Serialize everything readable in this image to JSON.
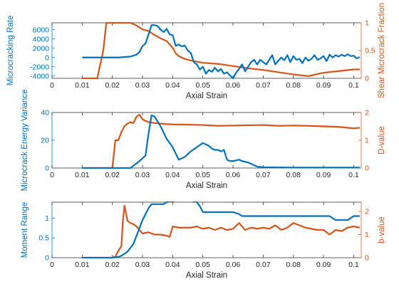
{
  "colors": {
    "left": "#0072BD",
    "right": "#D95319",
    "axis": "#262626"
  },
  "chart_data": [
    {
      "type": "line",
      "xlabel": "Axial Strain",
      "ylabel_left": "Microcracking Rate",
      "ylabel_right": "Shear Microcrack Fraction",
      "xlim": [
        0,
        0.1025
      ],
      "ylim_left": [
        -4500,
        7500
      ],
      "ylim_right": [
        0,
        1
      ],
      "xticks": [
        0,
        0.01,
        0.02,
        0.03,
        0.04,
        0.05,
        0.06,
        0.07,
        0.08,
        0.09,
        0.1
      ],
      "xtick_labels": [
        "0",
        "0.01",
        "0.02",
        "0.03",
        "0.04",
        "0.05",
        "0.06",
        "0.07",
        "0.08",
        "0.09",
        "0.1"
      ],
      "yticks_left": [
        -4000,
        -2000,
        0,
        2000,
        4000,
        6000
      ],
      "ytick_labels_left": [
        "-4000",
        "-2000",
        "0",
        "2000",
        "4000",
        "6000"
      ],
      "yticks_right": [
        0,
        0.5,
        1
      ],
      "ytick_labels_right": [
        "0",
        "0.5",
        "1"
      ],
      "series": [
        {
          "axis": "left",
          "x": [
            0.01,
            0.015,
            0.02,
            0.022,
            0.024,
            0.026,
            0.028,
            0.029,
            0.03,
            0.031,
            0.032,
            0.033,
            0.034,
            0.035,
            0.036,
            0.037,
            0.038,
            0.039,
            0.04,
            0.041,
            0.042,
            0.043,
            0.044,
            0.045,
            0.046,
            0.047,
            0.048,
            0.049,
            0.05,
            0.051,
            0.052,
            0.053,
            0.054,
            0.055,
            0.056,
            0.057,
            0.058,
            0.059,
            0.06,
            0.061,
            0.062,
            0.063,
            0.064,
            0.065,
            0.066,
            0.067,
            0.068,
            0.069,
            0.07,
            0.071,
            0.072,
            0.073,
            0.074,
            0.075,
            0.076,
            0.077,
            0.078,
            0.079,
            0.08,
            0.081,
            0.082,
            0.083,
            0.084,
            0.085,
            0.086,
            0.087,
            0.088,
            0.089,
            0.09,
            0.091,
            0.092,
            0.093,
            0.094,
            0.095,
            0.096,
            0.097,
            0.098,
            0.099,
            0.1,
            0.101,
            0.102
          ],
          "y": [
            0,
            0,
            0,
            0,
            100,
            200,
            600,
            1200,
            2500,
            3000,
            5000,
            7000,
            7000,
            6800,
            6000,
            5500,
            6200,
            5000,
            4800,
            2500,
            2800,
            2400,
            2600,
            1500,
            1000,
            -1000,
            -1500,
            -2600,
            -2000,
            -3500,
            -2700,
            -3100,
            -2200,
            -3000,
            -2500,
            -3500,
            -3200,
            -3900,
            -4500,
            -3300,
            -2500,
            -1500,
            -3000,
            -2000,
            -1000,
            -500,
            -1500,
            -500,
            -1000,
            -1500,
            -500,
            500,
            -1500,
            -700,
            0,
            -600,
            500,
            -1000,
            300,
            -500,
            -300,
            -1200,
            0,
            -700,
            -300,
            500,
            -500,
            -200,
            300,
            -800,
            600,
            0,
            500,
            200,
            600,
            300,
            700,
            300,
            400,
            -200,
            100
          ]
        },
        {
          "axis": "right",
          "x": [
            0.01,
            0.015,
            0.017,
            0.018,
            0.02,
            0.022,
            0.026,
            0.028,
            0.03,
            0.032,
            0.034,
            0.036,
            0.038,
            0.04,
            0.041,
            0.042,
            0.044,
            0.046,
            0.048,
            0.05,
            0.055,
            0.06,
            0.065,
            0.07,
            0.075,
            0.08,
            0.085,
            0.09,
            0.095,
            0.1,
            0.102
          ],
          "y": [
            0,
            0,
            0.5,
            1.0,
            1.0,
            1.0,
            1.0,
            0.95,
            0.88,
            0.85,
            0.78,
            0.72,
            0.67,
            0.55,
            0.45,
            0.4,
            0.35,
            0.32,
            0.3,
            0.28,
            0.26,
            0.22,
            0.18,
            0.15,
            0.11,
            0.07,
            0.04,
            0.1,
            0.13,
            0.16,
            0.16
          ]
        }
      ]
    },
    {
      "type": "line",
      "xlabel": "Axial Strain",
      "ylabel_left": "Microcrack Energy Variance",
      "ylabel_right": "D-value",
      "xlim": [
        0,
        0.1025
      ],
      "ylim_left": [
        0,
        40
      ],
      "ylim_right": [
        0,
        2
      ],
      "xticks": [
        0,
        0.01,
        0.02,
        0.03,
        0.04,
        0.05,
        0.06,
        0.07,
        0.08,
        0.09,
        0.1
      ],
      "xtick_labels": [
        "0",
        "0.01",
        "0.02",
        "0.03",
        "0.04",
        "0.05",
        "0.06",
        "0.07",
        "0.08",
        "0.09",
        "0.1"
      ],
      "yticks_left": [
        0,
        20,
        40
      ],
      "ytick_labels_left": [
        "0",
        "20",
        "40"
      ],
      "yticks_right": [
        0,
        1,
        2
      ],
      "ytick_labels_right": [
        "0",
        "1",
        "2"
      ],
      "series": [
        {
          "axis": "left",
          "x": [
            0.01,
            0.02,
            0.026,
            0.029,
            0.031,
            0.032,
            0.033,
            0.034,
            0.036,
            0.038,
            0.04,
            0.042,
            0.044,
            0.046,
            0.048,
            0.05,
            0.051,
            0.052,
            0.053,
            0.054,
            0.055,
            0.056,
            0.057,
            0.058,
            0.059,
            0.06,
            0.062,
            0.063,
            0.065,
            0.067,
            0.068,
            0.07,
            0.08,
            0.09,
            0.102
          ],
          "y": [
            0,
            0,
            0,
            5,
            9,
            25,
            38,
            37,
            30,
            21,
            15,
            6,
            8,
            12,
            15,
            18,
            17,
            16,
            14,
            13,
            13,
            12,
            13,
            6,
            5,
            5,
            6,
            5,
            4,
            2,
            1,
            0.5,
            0.3,
            0.3,
            0.3
          ]
        },
        {
          "axis": "right",
          "x": [
            0.01,
            0.02,
            0.021,
            0.022,
            0.023,
            0.024,
            0.025,
            0.026,
            0.027,
            0.028,
            0.029,
            0.03,
            0.032,
            0.034,
            0.036,
            0.038,
            0.04,
            0.045,
            0.05,
            0.055,
            0.06,
            0.065,
            0.07,
            0.075,
            0.08,
            0.085,
            0.09,
            0.095,
            0.1,
            0.102
          ],
          "y": [
            0,
            0,
            1.0,
            1.0,
            1.3,
            1.5,
            1.6,
            1.65,
            1.62,
            1.85,
            1.92,
            1.75,
            1.65,
            1.62,
            1.6,
            1.58,
            1.57,
            1.56,
            1.55,
            1.52,
            1.53,
            1.54,
            1.55,
            1.52,
            1.53,
            1.52,
            1.5,
            1.48,
            1.43,
            1.45
          ]
        }
      ]
    },
    {
      "type": "line",
      "xlabel": "Axial Strain",
      "ylabel_left": "Moment Range",
      "ylabel_right": "b-value",
      "xlim": [
        0,
        0.1025
      ],
      "ylim_left": [
        0,
        1.4
      ],
      "ylim_right": [
        0,
        2.4
      ],
      "xticks": [
        0,
        0.01,
        0.02,
        0.03,
        0.04,
        0.05,
        0.06,
        0.07,
        0.08,
        0.09,
        0.1
      ],
      "xtick_labels": [
        "0",
        "0.01",
        "0.02",
        "0.03",
        "0.04",
        "0.05",
        "0.06",
        "0.07",
        "0.08",
        "0.09",
        "0.1"
      ],
      "yticks_left": [
        0,
        0.5,
        1
      ],
      "ytick_labels_left": [
        "0",
        "0.5",
        "1"
      ],
      "yticks_right": [
        0,
        1,
        2
      ],
      "ytick_labels_right": [
        "0",
        "1",
        "2"
      ],
      "series": [
        {
          "axis": "left",
          "x": [
            0.01,
            0.02,
            0.022,
            0.023,
            0.024,
            0.025,
            0.026,
            0.027,
            0.028,
            0.029,
            0.03,
            0.031,
            0.032,
            0.033,
            0.034,
            0.035,
            0.036,
            0.037,
            0.038,
            0.039,
            0.04,
            0.041,
            0.042,
            0.044,
            0.046,
            0.048,
            0.049,
            0.05,
            0.055,
            0.06,
            0.062,
            0.063,
            0.07,
            0.08,
            0.09,
            0.092,
            0.094,
            0.096,
            0.098,
            0.1,
            0.102
          ],
          "y": [
            0,
            0,
            0.02,
            0.05,
            0.1,
            0.15,
            0.25,
            0.35,
            0.55,
            0.75,
            0.95,
            1.1,
            1.25,
            1.35,
            1.35,
            1.35,
            1.35,
            1.35,
            1.4,
            1.42,
            1.42,
            1.45,
            1.5,
            1.48,
            1.45,
            1.4,
            1.3,
            1.15,
            1.15,
            1.15,
            1.1,
            1.05,
            1.05,
            1.05,
            1.05,
            1.05,
            0.95,
            0.95,
            0.95,
            1.05,
            1.05
          ]
        },
        {
          "axis": "right",
          "x": [
            0.01,
            0.02,
            0.021,
            0.022,
            0.023,
            0.0235,
            0.024,
            0.025,
            0.026,
            0.027,
            0.028,
            0.029,
            0.03,
            0.032,
            0.034,
            0.036,
            0.038,
            0.039,
            0.04,
            0.042,
            0.044,
            0.046,
            0.048,
            0.05,
            0.052,
            0.054,
            0.056,
            0.058,
            0.06,
            0.062,
            0.064,
            0.066,
            0.068,
            0.07,
            0.072,
            0.074,
            0.076,
            0.078,
            0.08,
            0.082,
            0.084,
            0.086,
            0.088,
            0.09,
            0.092,
            0.094,
            0.096,
            0.098,
            0.1,
            0.102
          ],
          "y": [
            0,
            0,
            0.05,
            0.3,
            0.5,
            1.6,
            2.25,
            1.6,
            1.5,
            1.45,
            1.35,
            1.2,
            1.05,
            1.1,
            1.0,
            1.0,
            0.95,
            0.9,
            1.35,
            1.3,
            1.3,
            1.3,
            1.35,
            1.25,
            1.3,
            1.2,
            1.3,
            1.2,
            1.25,
            1.5,
            1.2,
            1.3,
            1.25,
            1.3,
            1.25,
            1.4,
            1.2,
            1.3,
            1.5,
            1.4,
            1.3,
            1.25,
            1.2,
            1.2,
            1.0,
            1.2,
            1.15,
            1.3,
            1.35,
            1.3
          ]
        }
      ]
    }
  ]
}
